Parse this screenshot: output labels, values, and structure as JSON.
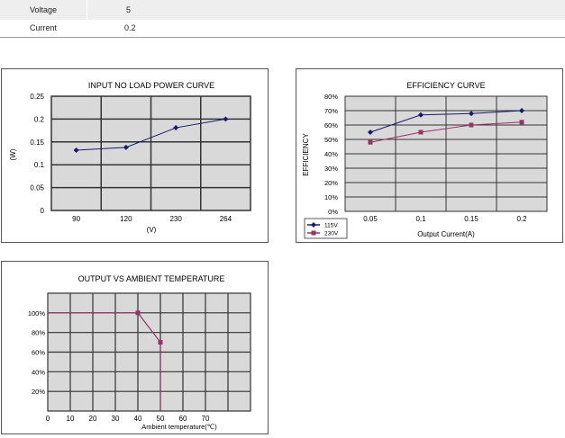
{
  "specs": {
    "rows": [
      {
        "label": "Voltage",
        "value": "5"
      },
      {
        "label": "Current",
        "value": "0.2"
      }
    ]
  },
  "colors": {
    "grid_bg": "#d9d9d9",
    "series_115v": "#1a1a6b",
    "series_230v": "#993366",
    "derating": "#993366"
  },
  "chart_data": [
    {
      "id": "input-no-load",
      "type": "line",
      "title": "INPUT NO LOAD POWER CURVE",
      "xlabel": "(V)",
      "ylabel": "(W)",
      "categories": [
        "90",
        "120",
        "230",
        "264"
      ],
      "series": [
        {
          "values": [
            0.132,
            0.138,
            0.181,
            0.2
          ],
          "marker": "diamond"
        }
      ],
      "yticks": [
        "0.25",
        "0.2",
        "0.15",
        "0.1",
        "0.05",
        "0"
      ],
      "ylim": [
        0,
        0.25
      ],
      "grid": true
    },
    {
      "id": "efficiency",
      "type": "line",
      "title": "EFFICIENCY  CURVE",
      "xlabel": "Output Current(A)",
      "ylabel": "EFFICIENCY",
      "categories": [
        "0.05",
        "0.1",
        "0.15",
        "0.2"
      ],
      "series": [
        {
          "name": "115V",
          "values": [
            55,
            67,
            68,
            70
          ],
          "marker": "diamond"
        },
        {
          "name": "230V",
          "values": [
            48,
            55,
            60,
            62
          ],
          "marker": "square"
        }
      ],
      "yticks": [
        "80%",
        "70%",
        "60%",
        "50%",
        "40%",
        "30%",
        "20%",
        "10%",
        "0%"
      ],
      "ylim": [
        0,
        80
      ],
      "legend": "bottom-left",
      "grid": true
    },
    {
      "id": "derating",
      "type": "line",
      "title": "OUTPUT VS AMBIENT TEMPERATURE",
      "xlabel": "Ambient temperature(℃)",
      "ylabel": "",
      "x": [
        0,
        10,
        20,
        30,
        40,
        50,
        60,
        70
      ],
      "xticks": [
        "0",
        "10",
        "20",
        "30",
        "40",
        "50",
        "60",
        "70"
      ],
      "yticks": [
        "100%",
        "80%",
        "60%",
        "40%",
        "20%"
      ],
      "series": [
        {
          "points": [
            [
              0,
              100
            ],
            [
              40,
              100
            ],
            [
              50,
              70
            ]
          ],
          "marker": "square"
        }
      ],
      "drop_at_x": 50,
      "xlim": [
        0,
        90
      ],
      "ylim": [
        0,
        120
      ],
      "grid": true
    }
  ]
}
